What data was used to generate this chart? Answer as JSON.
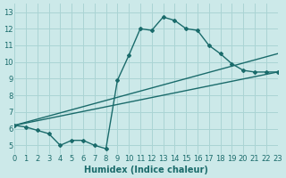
{
  "xlabel": "Humidex (Indice chaleur)",
  "xlim": [
    0,
    23
  ],
  "ylim": [
    4.5,
    13.5
  ],
  "xticks": [
    0,
    1,
    2,
    3,
    4,
    5,
    6,
    7,
    8,
    9,
    10,
    11,
    12,
    13,
    14,
    15,
    16,
    17,
    18,
    19,
    20,
    21,
    22,
    23
  ],
  "yticks": [
    5,
    6,
    7,
    8,
    9,
    10,
    11,
    12,
    13
  ],
  "bg_color": "#cce9e9",
  "grid_color": "#aad4d4",
  "line_color": "#1a6b6b",
  "main_x": [
    0,
    1,
    2,
    3,
    4,
    5,
    6,
    7,
    8,
    9,
    10,
    11,
    12,
    13,
    14,
    15,
    16,
    17,
    18,
    19,
    20,
    21,
    22,
    23
  ],
  "main_y": [
    6.2,
    6.1,
    5.9,
    5.7,
    5.0,
    5.3,
    5.3,
    5.0,
    4.8,
    8.9,
    10.4,
    12.0,
    11.9,
    12.7,
    12.5,
    12.0,
    11.9,
    11.0,
    10.5,
    9.9,
    9.5,
    9.4,
    9.4,
    9.4
  ],
  "upper_line_x": [
    0,
    23
  ],
  "upper_line_y": [
    6.2,
    10.5
  ],
  "lower_line_x": [
    0,
    23
  ],
  "lower_line_y": [
    6.2,
    9.4
  ]
}
